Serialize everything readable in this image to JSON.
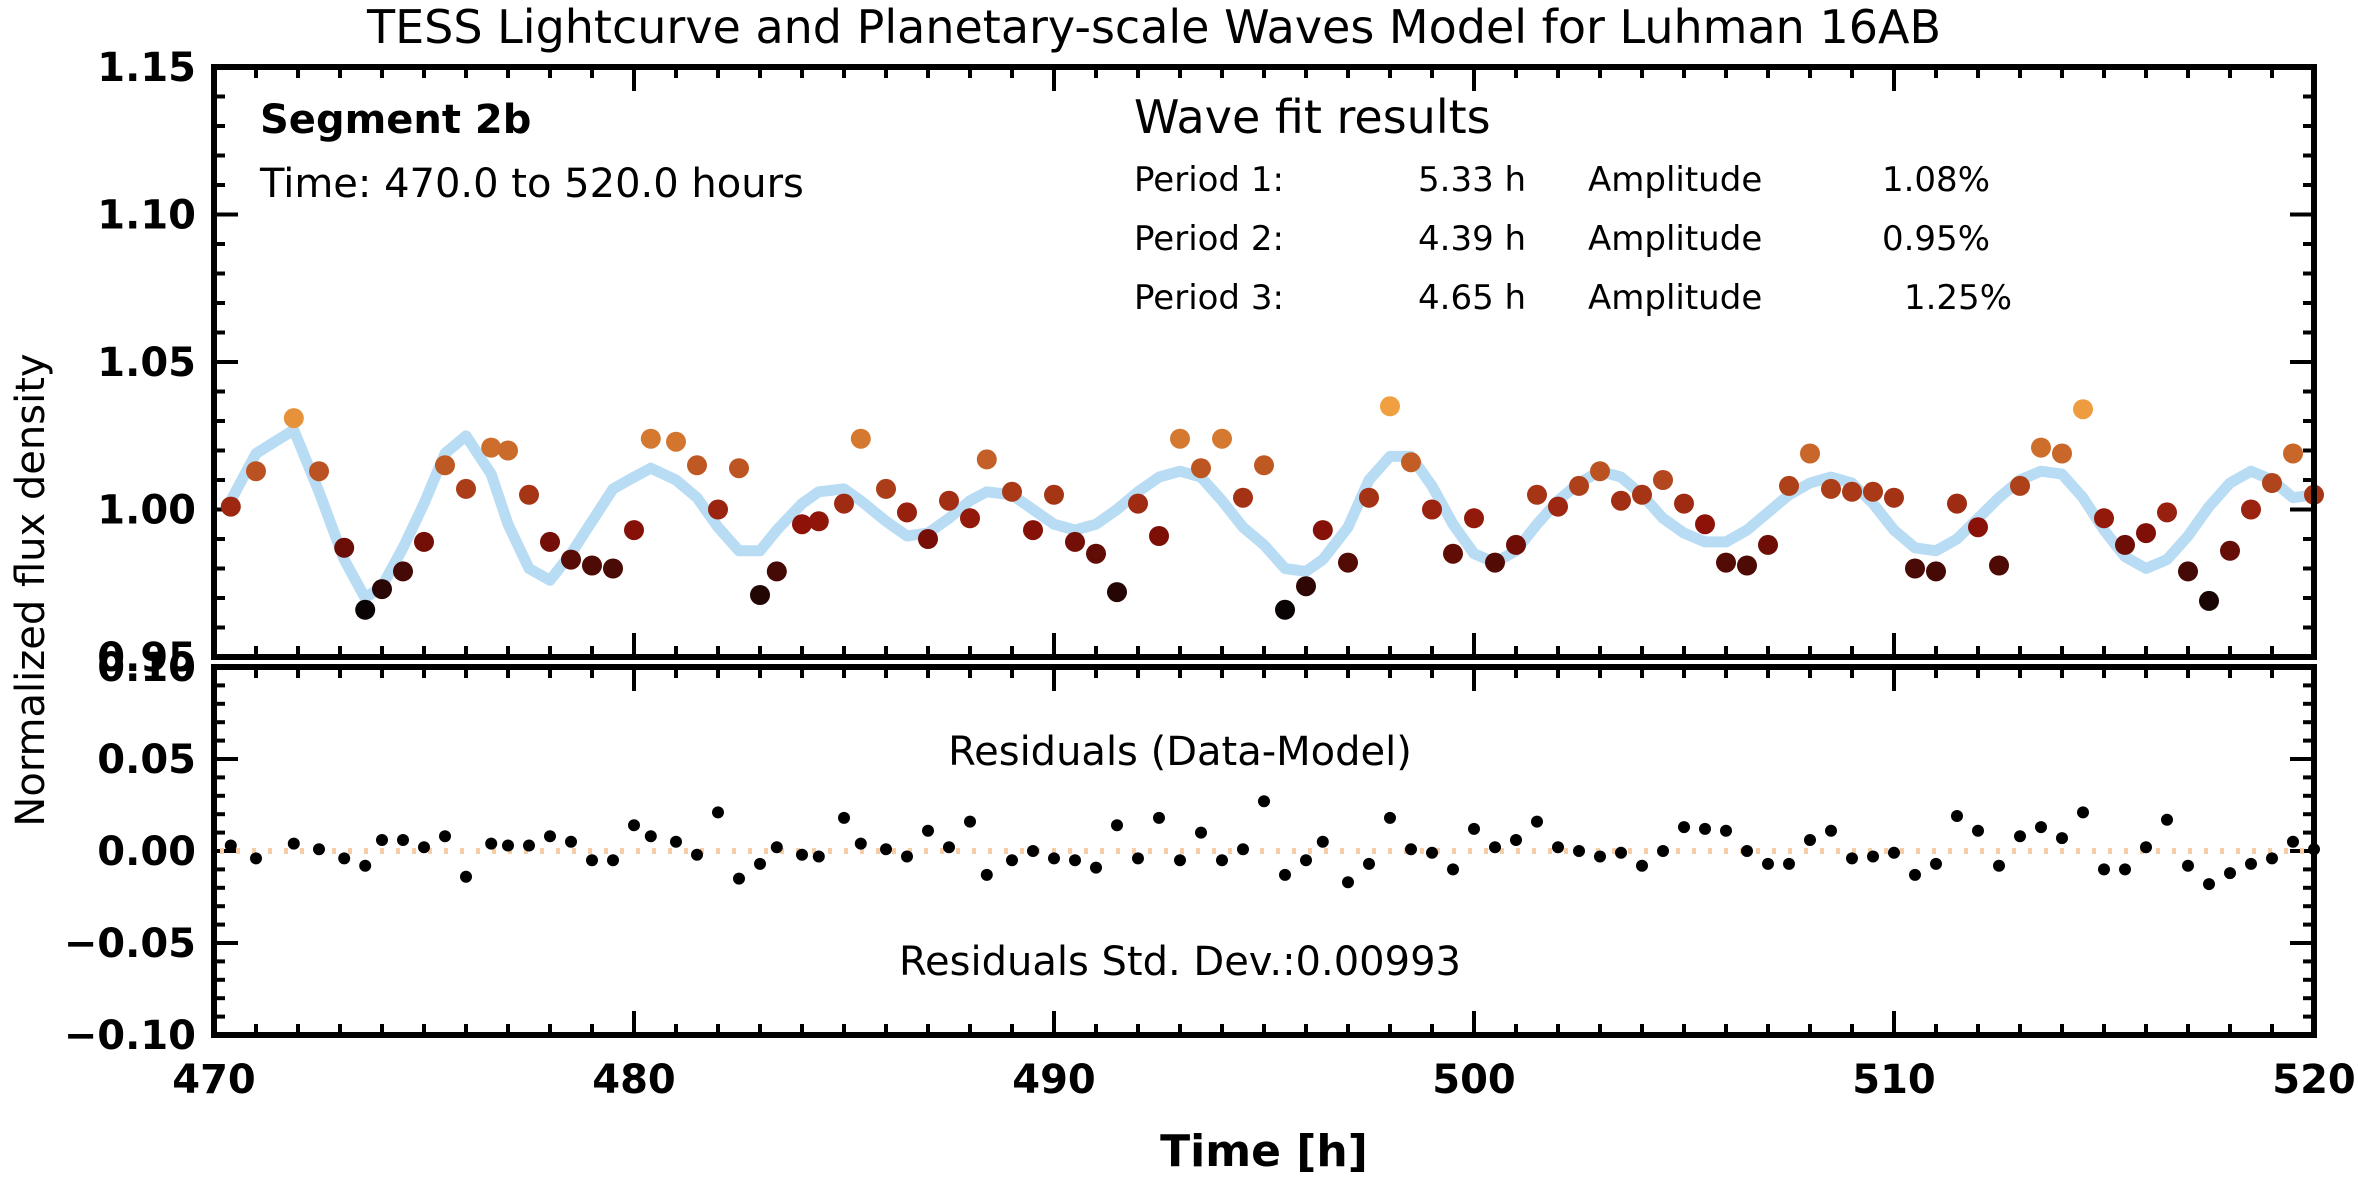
{
  "title": "TESS Lightcurve and Planetary-scale Waves Model for Luhman 16AB",
  "ylabel": "Normalized flux density",
  "xlabel": "Time [h]",
  "segment": {
    "name": "Segment 2b",
    "time_range": "Time: 470.0 to 520.0 hours"
  },
  "wave_fit": {
    "heading": "Wave fit results",
    "rows": [
      {
        "label": "Period 1:",
        "period": "5.33 h",
        "amp_label": "Amplitude",
        "amp": "1.08%"
      },
      {
        "label": "Period 2:",
        "period": "4.39 h",
        "amp_label": "Amplitude",
        "amp": "0.95%"
      },
      {
        "label": "Period 3:",
        "period": "4.65 h",
        "amp_label": "Amplitude",
        "amp": "1.25%"
      }
    ]
  },
  "residuals": {
    "label": "Residuals (Data-Model)",
    "stddev_text": "Residuals Std. Dev.:0.00993"
  },
  "colors": {
    "model": "#b9dcf5",
    "zero_line": "#f3cea6",
    "residual_point": "#000000",
    "flux_low": "#0a0303",
    "flux_mid": "#8e1208",
    "flux_high": "#f0a040"
  },
  "chart_data": [
    {
      "type": "scatter",
      "panel": "lightcurve",
      "xlim": [
        470,
        520
      ],
      "ylim": [
        0.95,
        1.15
      ],
      "x_ticks": [
        470,
        480,
        490,
        500,
        510,
        520
      ],
      "y_ticks": [
        0.95,
        1.0,
        1.05,
        1.1,
        1.15
      ],
      "y_tick_labels": [
        "0.95",
        "1.00",
        "1.05",
        "1.10",
        "1.15"
      ],
      "series": [
        {
          "name": "data",
          "x": [
            470.4,
            471.0,
            471.9,
            472.5,
            473.1,
            473.6,
            474.0,
            474.5,
            475.0,
            475.5,
            476.0,
            476.6,
            477.0,
            477.5,
            478.0,
            478.5,
            479.0,
            479.5,
            480.0,
            480.4,
            481.0,
            481.5,
            482.0,
            482.5,
            483.0,
            483.4,
            484.0,
            484.4,
            485.0,
            485.4,
            486.0,
            486.5,
            487.0,
            487.5,
            488.0,
            488.4,
            489.0,
            489.5,
            490.0,
            490.5,
            491.0,
            491.5,
            492.0,
            492.5,
            493.0,
            493.5,
            494.0,
            494.5,
            495.0,
            495.5,
            496.0,
            496.4,
            497.0,
            497.5,
            498.0,
            498.5,
            499.0,
            499.5,
            500.0,
            500.5,
            501.0,
            501.5,
            502.0,
            502.5,
            503.0,
            503.5,
            504.0,
            504.5,
            505.0,
            505.5,
            506.0,
            506.5,
            507.0,
            507.5,
            508.0,
            508.5,
            509.0,
            509.5,
            510.0,
            510.5,
            511.0,
            511.5,
            512.0,
            512.5,
            513.0,
            513.5,
            514.0,
            514.5,
            515.0,
            515.5,
            516.0,
            516.5,
            517.0,
            517.5,
            518.0,
            518.5,
            519.0,
            519.5,
            520.0
          ],
          "y": [
            1.001,
            1.013,
            1.031,
            1.013,
            0.987,
            0.966,
            0.973,
            0.979,
            0.989,
            1.015,
            1.007,
            1.021,
            1.02,
            1.005,
            0.989,
            0.983,
            0.981,
            0.98,
            0.993,
            1.024,
            1.023,
            1.015,
            1.0,
            1.014,
            0.971,
            0.979,
            0.995,
            0.996,
            1.002,
            1.024,
            1.007,
            0.999,
            0.99,
            1.003,
            0.997,
            1.017,
            1.006,
            0.993,
            1.005,
            0.989,
            0.985,
            0.972,
            1.002,
            0.991,
            1.024,
            1.014,
            1.024,
            1.004,
            1.015,
            0.966,
            0.974,
            0.993,
            0.982,
            1.004,
            1.035,
            1.016,
            1.0,
            0.985,
            0.997,
            0.982,
            0.988,
            1.005,
            1.001,
            1.008,
            1.013,
            1.003,
            1.005,
            1.01,
            1.002,
            0.995,
            0.982,
            0.981,
            0.988,
            1.008,
            1.019,
            1.007,
            1.006,
            1.006,
            1.004,
            0.98,
            0.979,
            1.002,
            0.994,
            0.981,
            1.008,
            1.021,
            1.019,
            1.034,
            0.997,
            0.988,
            0.992,
            0.999,
            0.979,
            0.969,
            0.986,
            1.0,
            1.009,
            1.019,
            1.005
          ]
        },
        {
          "name": "model",
          "x": [
            470.4,
            471.0,
            471.9,
            472.5,
            473.1,
            473.6,
            474.0,
            474.5,
            475.0,
            475.5,
            476.0,
            476.6,
            477.0,
            477.5,
            478.0,
            478.5,
            479.0,
            479.5,
            480.0,
            480.4,
            481.0,
            481.5,
            482.0,
            482.5,
            483.0,
            483.4,
            484.0,
            484.4,
            485.0,
            485.4,
            486.0,
            486.5,
            487.0,
            487.5,
            488.0,
            488.4,
            489.0,
            489.5,
            490.0,
            490.5,
            491.0,
            491.5,
            492.0,
            492.5,
            493.0,
            493.5,
            494.0,
            494.5,
            495.0,
            495.5,
            496.0,
            496.4,
            497.0,
            497.5,
            498.0,
            498.5,
            499.0,
            499.5,
            500.0,
            500.5,
            501.0,
            501.5,
            502.0,
            502.5,
            503.0,
            503.5,
            504.0,
            504.5,
            505.0,
            505.5,
            506.0,
            506.5,
            507.0,
            507.5,
            508.0,
            508.5,
            509.0,
            509.5,
            510.0,
            510.5,
            511.0,
            511.5,
            512.0,
            512.5,
            513.0,
            513.5,
            514.0,
            514.5,
            515.0,
            515.5,
            516.0,
            516.5,
            517.0,
            517.5,
            518.0,
            518.5,
            519.0,
            519.5,
            520.0
          ],
          "y": [
            1.003,
            1.019,
            1.027,
            1.006,
            0.983,
            0.97,
            0.974,
            0.987,
            1.002,
            1.019,
            1.025,
            1.012,
            0.995,
            0.98,
            0.976,
            0.985,
            0.996,
            1.007,
            1.011,
            1.014,
            1.01,
            1.004,
            0.994,
            0.986,
            0.986,
            0.993,
            1.002,
            1.006,
            1.007,
            1.003,
            0.996,
            0.991,
            0.992,
            0.997,
            1.003,
            1.006,
            1.005,
            1.0,
            0.995,
            0.993,
            0.995,
            1.0,
            1.006,
            1.011,
            1.013,
            1.011,
            1.003,
            0.994,
            0.988,
            0.98,
            0.979,
            0.983,
            0.994,
            1.01,
            1.018,
            1.018,
            1.008,
            0.995,
            0.985,
            0.982,
            0.986,
            0.995,
            1.003,
            1.009,
            1.013,
            1.011,
            1.005,
            0.997,
            0.992,
            0.989,
            0.989,
            0.993,
            0.999,
            1.005,
            1.009,
            1.011,
            1.009,
            1.002,
            0.993,
            0.987,
            0.986,
            0.99,
            0.997,
            1.004,
            1.01,
            1.013,
            1.012,
            1.004,
            0.993,
            0.984,
            0.98,
            0.983,
            0.991,
            1.001,
            1.009,
            1.013,
            1.01,
            1.004,
            1.005
          ]
        }
      ]
    },
    {
      "type": "scatter",
      "panel": "residuals",
      "xlim": [
        470,
        520
      ],
      "ylim": [
        -0.1,
        0.1
      ],
      "x_ticks": [
        470,
        480,
        490,
        500,
        510,
        520
      ],
      "x_tick_labels": [
        "470",
        "480",
        "490",
        "500",
        "510",
        "520"
      ],
      "y_ticks": [
        -0.1,
        -0.05,
        0.0,
        0.05,
        0.1
      ],
      "y_tick_labels": [
        "−0.10",
        "−0.05",
        "0.00",
        "0.05",
        "0.10"
      ],
      "zero_line": true,
      "series": [
        {
          "name": "residuals",
          "x": [
            470.4,
            471.0,
            471.9,
            472.5,
            473.1,
            473.6,
            474.0,
            474.5,
            475.0,
            475.5,
            476.0,
            476.6,
            477.0,
            477.5,
            478.0,
            478.5,
            479.0,
            479.5,
            480.0,
            480.4,
            481.0,
            481.5,
            482.0,
            482.5,
            483.0,
            483.4,
            484.0,
            484.4,
            485.0,
            485.4,
            486.0,
            486.5,
            487.0,
            487.5,
            488.0,
            488.4,
            489.0,
            489.5,
            490.0,
            490.5,
            491.0,
            491.5,
            492.0,
            492.5,
            493.0,
            493.5,
            494.0,
            494.5,
            495.0,
            495.5,
            496.0,
            496.4,
            497.0,
            497.5,
            498.0,
            498.5,
            499.0,
            499.5,
            500.0,
            500.5,
            501.0,
            501.5,
            502.0,
            502.5,
            503.0,
            503.5,
            504.0,
            504.5,
            505.0,
            505.5,
            506.0,
            506.5,
            507.0,
            507.5,
            508.0,
            508.5,
            509.0,
            509.5,
            510.0,
            510.5,
            511.0,
            511.5,
            512.0,
            512.5,
            513.0,
            513.5,
            514.0,
            514.5,
            515.0,
            515.5,
            516.0,
            516.5,
            517.0,
            517.5,
            518.0,
            518.5,
            519.0,
            519.5,
            520.0
          ],
          "y": [
            0.003,
            -0.004,
            0.004,
            0.001,
            -0.004,
            -0.008,
            0.006,
            0.006,
            0.002,
            0.008,
            -0.014,
            0.004,
            0.003,
            0.003,
            0.008,
            0.005,
            -0.005,
            -0.005,
            0.014,
            0.008,
            0.005,
            -0.002,
            0.021,
            -0.015,
            -0.007,
            0.002,
            -0.002,
            -0.003,
            0.018,
            0.004,
            0.001,
            -0.003,
            0.011,
            0.002,
            0.016,
            -0.013,
            -0.005,
            0.0,
            -0.004,
            -0.005,
            -0.009,
            0.014,
            -0.004,
            0.018,
            -0.005,
            0.01,
            -0.005,
            0.001,
            0.027,
            -0.013,
            -0.005,
            0.005,
            -0.017,
            -0.007,
            0.018,
            0.001,
            -0.001,
            -0.01,
            0.012,
            0.002,
            0.006,
            0.016,
            0.002,
            0.0,
            -0.003,
            -0.001,
            -0.008,
            0.0,
            0.013,
            0.012,
            0.011,
            0.0,
            -0.007,
            -0.007,
            0.006,
            0.011,
            -0.004,
            -0.003,
            -0.001,
            -0.013,
            -0.007,
            0.019,
            0.011,
            -0.008,
            0.008,
            0.013,
            0.007,
            0.021,
            -0.01,
            -0.01,
            0.002,
            0.017,
            -0.008,
            -0.018,
            -0.012,
            -0.007,
            -0.004,
            0.005,
            0.001
          ]
        }
      ]
    }
  ]
}
